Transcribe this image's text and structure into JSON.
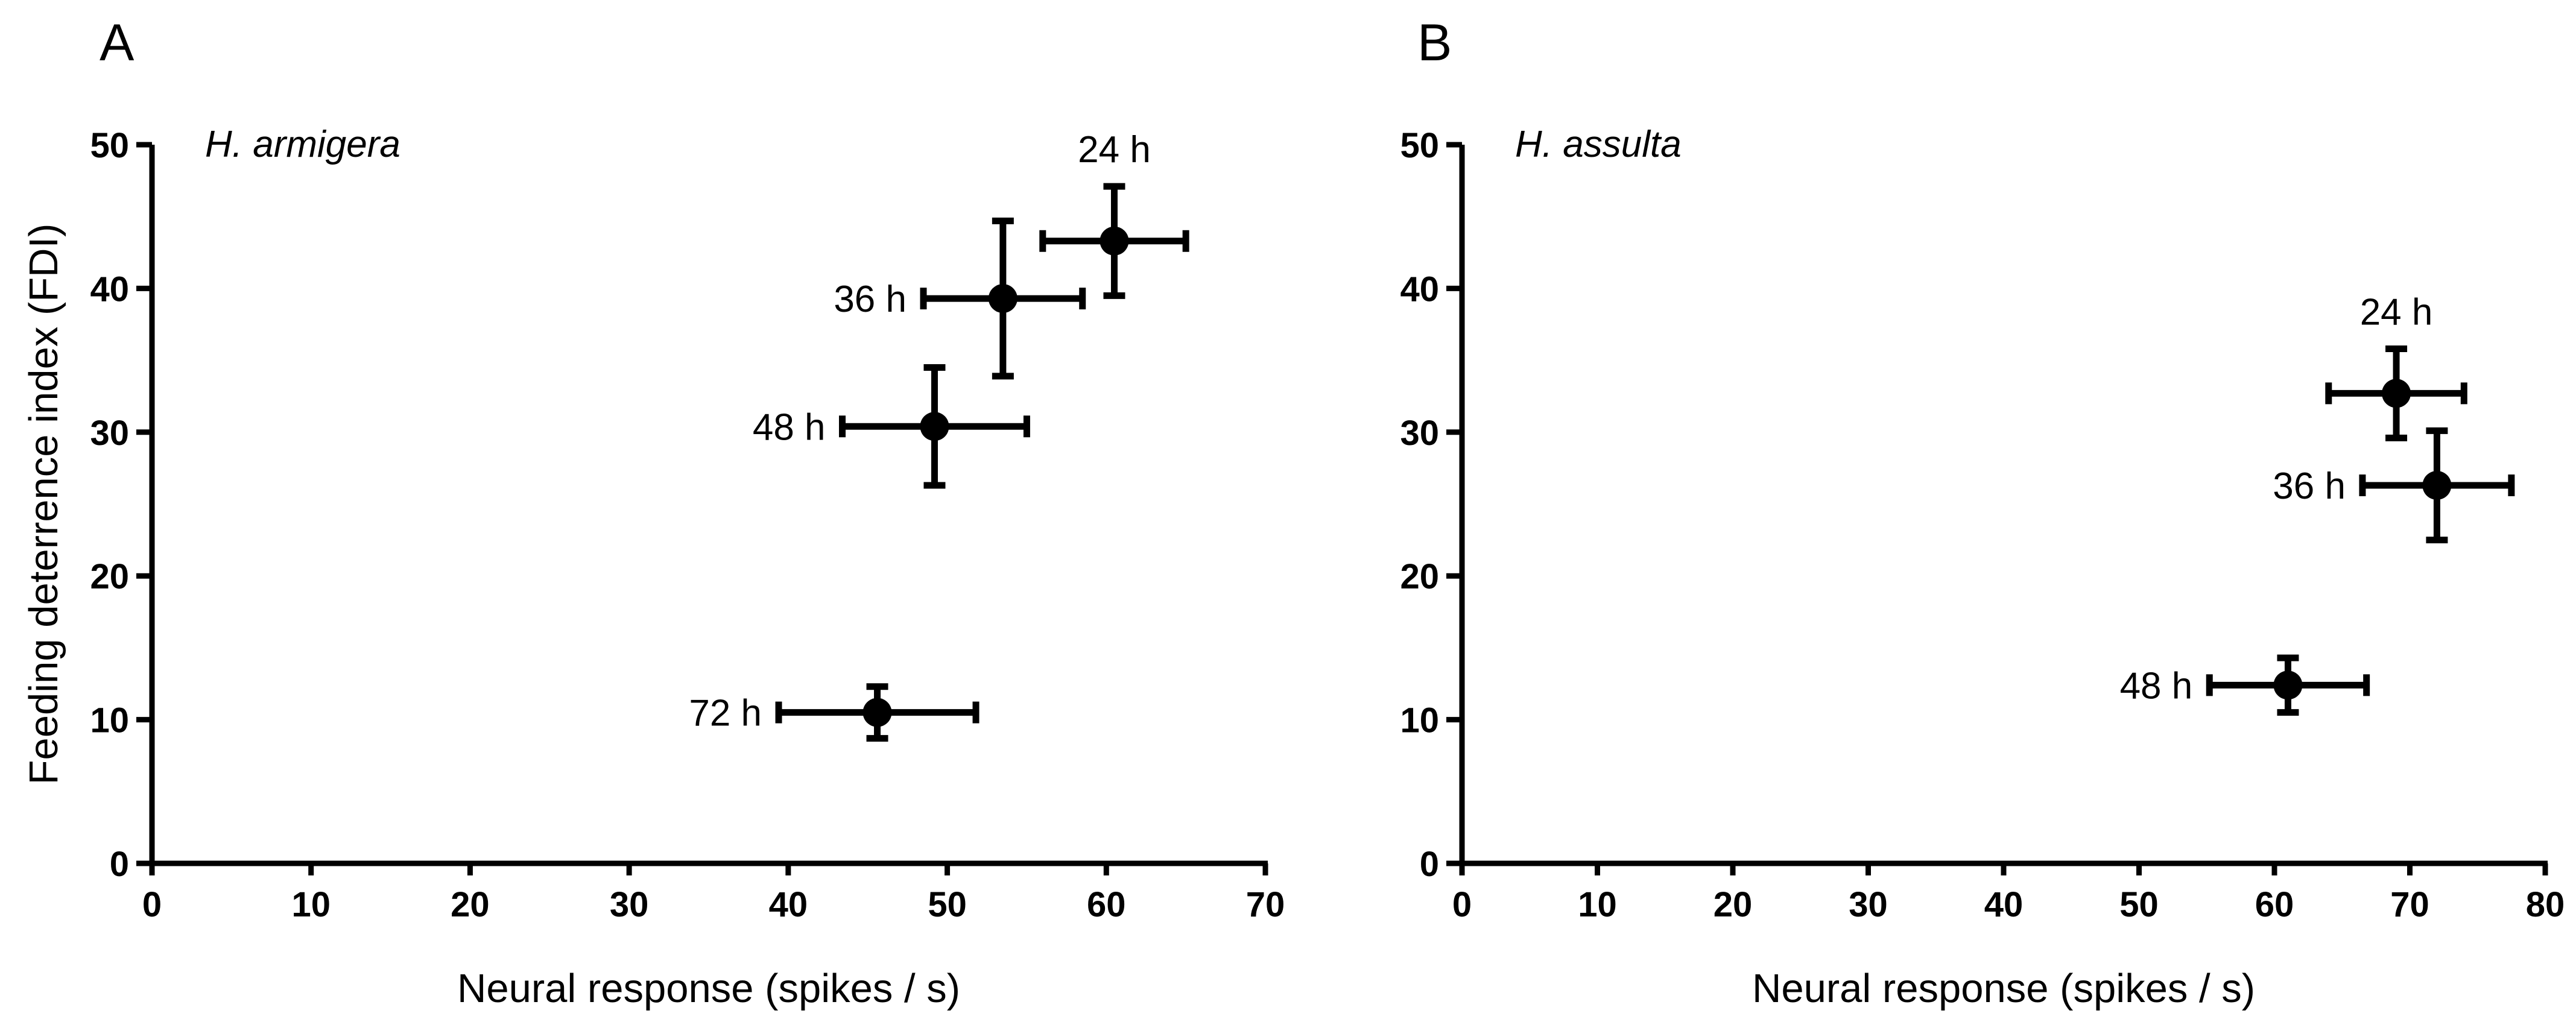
{
  "chart_data": [
    {
      "type": "scatter",
      "panel": "A",
      "species": "H. armigera",
      "xlabel": "Neural response (spikes / s)",
      "ylabel": "Feeding deterrence index (FDI)",
      "xlim": [
        0,
        70
      ],
      "ylim": [
        0,
        50
      ],
      "xticks": [
        "0",
        "10",
        "20",
        "30",
        "40",
        "50",
        "60",
        "70"
      ],
      "yticks": [
        "0",
        "10",
        "20",
        "30",
        "40",
        "50"
      ],
      "grid": false,
      "points": [
        {
          "label": "24 h",
          "x": 60.5,
          "y": 43.3,
          "xerr": 4.5,
          "yerr": 3.8,
          "label_pos": "top"
        },
        {
          "label": "36 h",
          "x": 53.5,
          "y": 39.3,
          "xerr": 5.0,
          "yerr": 5.4,
          "label_pos": "left"
        },
        {
          "label": "48 h",
          "x": 49.2,
          "y": 30.4,
          "xerr": 5.8,
          "yerr": 4.1,
          "label_pos": "left"
        },
        {
          "label": "72 h",
          "x": 45.6,
          "y": 10.5,
          "xerr": 6.2,
          "yerr": 1.8,
          "label_pos": "left"
        }
      ]
    },
    {
      "type": "scatter",
      "panel": "B",
      "species": "H. assulta",
      "xlabel": "Neural response (spikes / s)",
      "ylabel": "",
      "xlim": [
        0,
        80
      ],
      "ylim": [
        0,
        50
      ],
      "xticks": [
        "0",
        "10",
        "20",
        "30",
        "40",
        "50",
        "60",
        "70",
        "80"
      ],
      "yticks": [
        "0",
        "10",
        "20",
        "30",
        "40",
        "50"
      ],
      "grid": false,
      "points": [
        {
          "label": "24 h",
          "x": 69.0,
          "y": 32.7,
          "xerr": 5.0,
          "yerr": 3.1,
          "label_pos": "top"
        },
        {
          "label": "36 h",
          "x": 72.0,
          "y": 26.3,
          "xerr": 5.5,
          "yerr": 3.8,
          "label_pos": "left"
        },
        {
          "label": "48 h",
          "x": 61.0,
          "y": 12.4,
          "xerr": 5.8,
          "yerr": 1.9,
          "label_pos": "left"
        }
      ]
    }
  ]
}
